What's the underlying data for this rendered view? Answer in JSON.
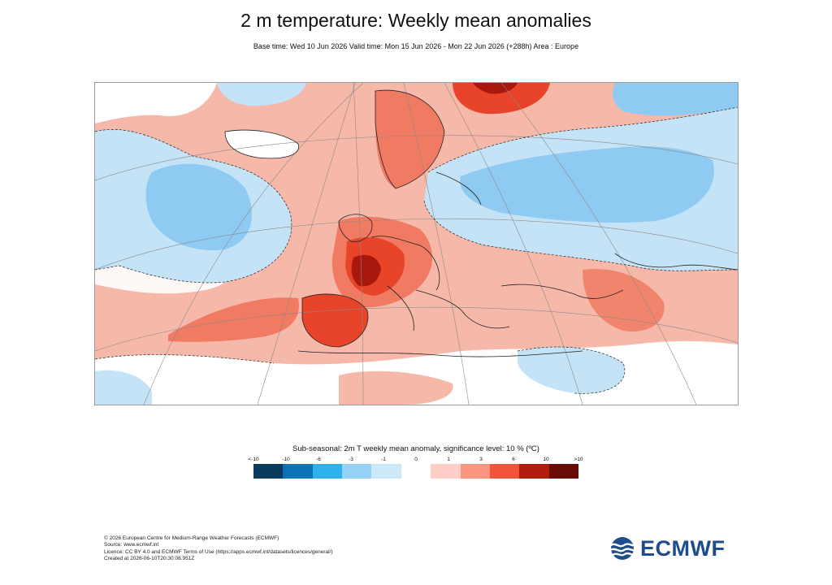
{
  "header": {
    "title": "2 m temperature: Weekly mean anomalies",
    "subtitle": "Base time: Wed 10 Jun 2026 Valid time: Mon 15 Jun 2026 - Mon 22 Jun 2026 (+288h) Area : Europe"
  },
  "map": {
    "area": "Europe",
    "colors": {
      "ocean_base": "#f6b8a8",
      "cold_strong": "#6fb8ee",
      "cold_weak": "#c5e3f7",
      "neutral": "#ffffff",
      "warm_weak": "#f6b8a8",
      "warm_mid": "#f07a62",
      "warm_strong": "#e8442a",
      "warm_extreme": "#a8180c",
      "coastline": "#222222",
      "graticule": "#8a8a8a"
    }
  },
  "legend": {
    "title": "Sub-seasonal: 2m T weekly mean anomaly, significance level: 10 % (ºC)",
    "ticks": [
      "<-10",
      "-10",
      "-6",
      "-3",
      "-1",
      "0",
      "1",
      "3",
      "6",
      "10",
      ">10"
    ],
    "colors": [
      "#0a3a5c",
      "#0a72b5",
      "#2fb1ec",
      "#95d3f6",
      "#cde9f9",
      "#ffffff",
      "#fdcfc6",
      "#f89480",
      "#f0543a",
      "#b21c0e",
      "#6a0c06"
    ]
  },
  "footer": {
    "line1": "© 2026 European Centre for Medium-Range Weather Forecasts (ECMWF)",
    "line2": "Source: www.ecmwf.int",
    "line3": "Licence: CC BY 4.0 and ECMWF Terms of Use (https://apps.ecmwf.int/datasets/licences/general/)",
    "line4": "Created at 2026-06-10T20:30:08.951Z"
  },
  "logo": {
    "text": "ECMWF",
    "color": "#1d4e89"
  }
}
